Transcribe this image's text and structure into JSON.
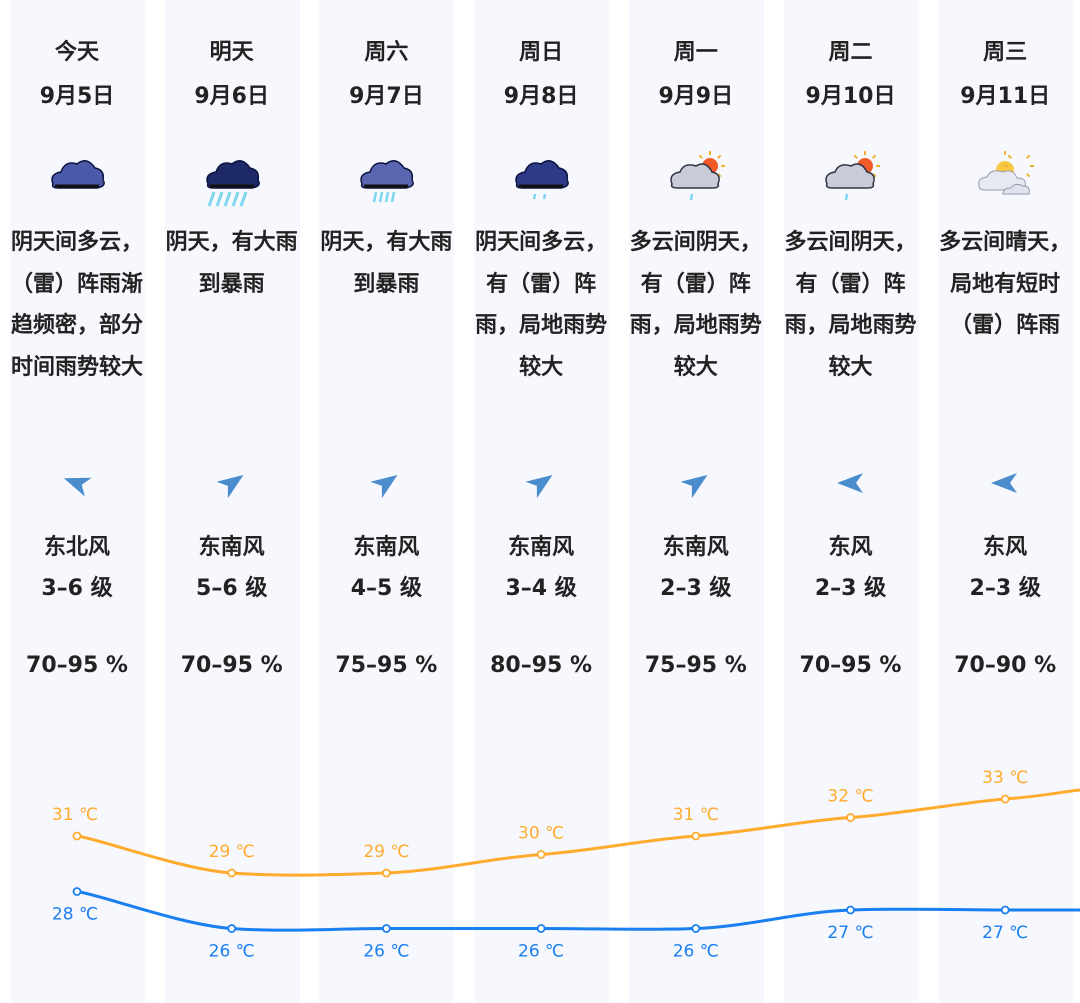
{
  "days": [
    {
      "day": "今天",
      "date": "9月5日",
      "icon": "overcast-cloud-icon",
      "desc": "阴天间多云，（雷）阵雨渐趋频密，部分时间雨势较大",
      "wind_dir": "东北风",
      "wind_level": "3–6 级",
      "wind_arrow_deg": 200,
      "humidity": "70–95 %",
      "high": "31 ℃",
      "low": "28 ℃"
    },
    {
      "day": "明天",
      "date": "9月6日",
      "icon": "heavy-rain-icon",
      "desc": "阴天，有大雨到暴雨",
      "wind_dir": "东南风",
      "wind_level": "5–6 级",
      "wind_arrow_deg": -35,
      "humidity": "70–95 %",
      "high": "29 ℃",
      "low": "26 ℃"
    },
    {
      "day": "周六",
      "date": "9月7日",
      "icon": "rainstorm-icon",
      "desc": "阴天，有大雨到暴雨",
      "wind_dir": "东南风",
      "wind_level": "4–5 级",
      "wind_arrow_deg": -35,
      "humidity": "75–95 %",
      "high": "29 ℃",
      "low": "26 ℃"
    },
    {
      "day": "周日",
      "date": "9月8日",
      "icon": "shower-cloud-icon",
      "desc": "阴天间多云，有（雷）阵雨，局地雨势较大",
      "wind_dir": "东南风",
      "wind_level": "3–4 级",
      "wind_arrow_deg": -35,
      "humidity": "80–95 %",
      "high": "30 ℃",
      "low": "26 ℃"
    },
    {
      "day": "周一",
      "date": "9月9日",
      "icon": "sun-cloud-shower-icon",
      "desc": "多云间阴天，有（雷）阵雨，局地雨势较大",
      "wind_dir": "东南风",
      "wind_level": "2–3 级",
      "wind_arrow_deg": -35,
      "humidity": "75–95 %",
      "high": "31 ℃",
      "low": "26 ℃"
    },
    {
      "day": "周二",
      "date": "9月10日",
      "icon": "sun-cloud-shower-icon",
      "desc": "多云间阴天，有（雷）阵雨，局地雨势较大",
      "wind_dir": "东风",
      "wind_level": "2–3 级",
      "wind_arrow_deg": 180,
      "humidity": "70–95 %",
      "high": "32 ℃",
      "low": "27 ℃"
    },
    {
      "day": "周三",
      "date": "9月11日",
      "icon": "partly-cloudy-icon",
      "desc": "多云间晴天，局地有短时（雷）阵雨",
      "wind_dir": "东风",
      "wind_level": "2–3 级",
      "wind_arrow_deg": 180,
      "humidity": "70–90 %",
      "high": "33 ℃",
      "low": "27 ℃"
    }
  ],
  "colors": {
    "high": "#ffab2e",
    "low": "#1a7ff0",
    "column_bg": "#f6f8fe",
    "wind_arrow": "#4a8ccc"
  },
  "chart_data": {
    "type": "line",
    "categories": [
      "9月5日",
      "9月6日",
      "9月7日",
      "9月8日",
      "9月9日",
      "9月10日",
      "9月11日"
    ],
    "series": [
      {
        "values": [
          31,
          29,
          29,
          30,
          31,
          32,
          33
        ],
        "color": "#ffab2e"
      },
      {
        "values": [
          28,
          26,
          26,
          26,
          26,
          27,
          27
        ],
        "color": "#1a7ff0"
      }
    ],
    "unit": "℃"
  }
}
